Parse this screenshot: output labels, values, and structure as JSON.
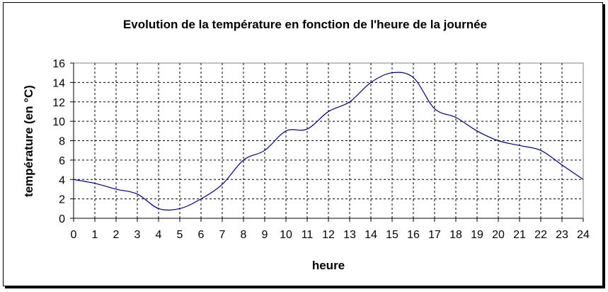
{
  "chart_data": {
    "type": "line",
    "title": "Evolution de la température en fonction de l'heure de la journée",
    "xlabel": "heure",
    "ylabel": "température (en °C)",
    "xlim": [
      0,
      24
    ],
    "ylim": [
      0,
      16
    ],
    "x_ticks": [
      "0",
      "1",
      "2",
      "3",
      "4",
      "5",
      "6",
      "7",
      "8",
      "9",
      "10",
      "11",
      "12",
      "13",
      "14",
      "15",
      "16",
      "17",
      "18",
      "19",
      "20",
      "21",
      "22",
      "23",
      "24"
    ],
    "y_ticks": [
      "0",
      "2",
      "4",
      "6",
      "8",
      "10",
      "12",
      "14",
      "16"
    ],
    "grid": true,
    "legend": "none",
    "series": [
      {
        "color": "#000080",
        "x": [
          0,
          1,
          2,
          3,
          4,
          5,
          6,
          7,
          8,
          9,
          10,
          11,
          12,
          13,
          14,
          15,
          16,
          17,
          18,
          19,
          20,
          21,
          22,
          23,
          24
        ],
        "values": [
          4,
          3.6,
          3,
          2.5,
          1,
          1,
          2,
          3.5,
          6,
          7,
          9,
          9.2,
          11,
          12,
          14,
          15,
          14.5,
          11.3,
          10.4,
          9,
          8,
          7.5,
          7,
          5.5,
          4
        ]
      }
    ]
  }
}
